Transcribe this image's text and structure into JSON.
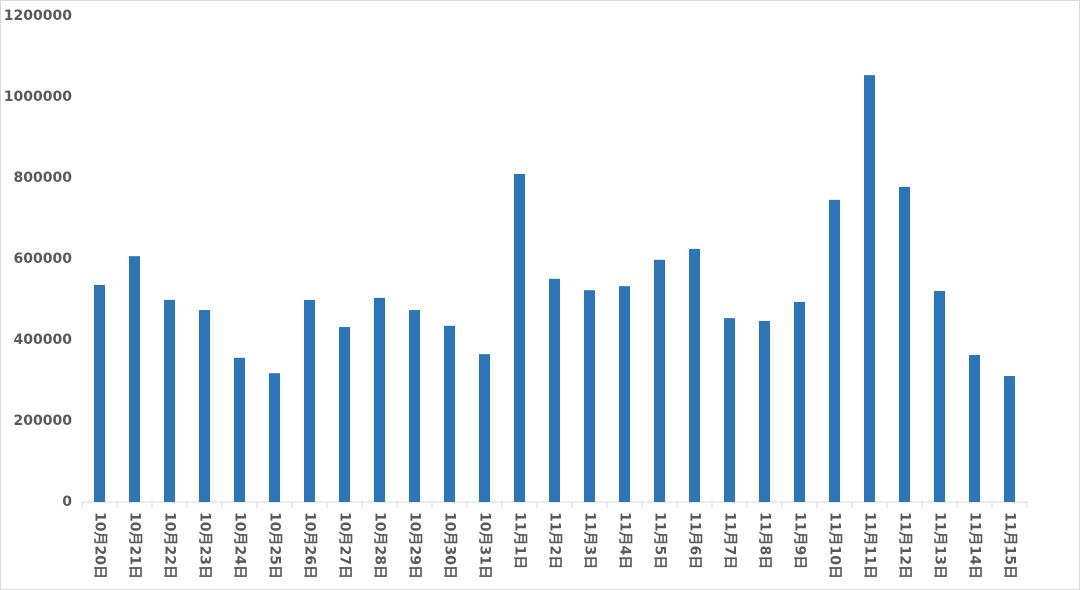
{
  "chart_data": {
    "type": "bar",
    "categories": [
      "10月20日",
      "10月21日",
      "10月22日",
      "10月23日",
      "10月24日",
      "10月25日",
      "10月26日",
      "10月27日",
      "10月28日",
      "10月29日",
      "10月30日",
      "10月31日",
      "11月1日",
      "11月2日",
      "11月3日",
      "11月4日",
      "11月5日",
      "11月6日",
      "11月7日",
      "11月8日",
      "11月9日",
      "11月10日",
      "11月11日",
      "11月12日",
      "11月13日",
      "11月14日",
      "11月15日"
    ],
    "values": [
      536000,
      607000,
      499000,
      474000,
      356000,
      318000,
      499000,
      432000,
      504000,
      474000,
      435000,
      365000,
      810000,
      551000,
      523000,
      533000,
      598000,
      625000,
      454000,
      447000,
      494000,
      746000,
      1054000,
      778000,
      521000,
      363000,
      311000
    ],
    "color": "#2e75b6",
    "ylim": [
      0,
      1200000
    ],
    "yticks": [
      0,
      200000,
      400000,
      600000,
      800000,
      1000000,
      1200000
    ],
    "grid": false
  }
}
